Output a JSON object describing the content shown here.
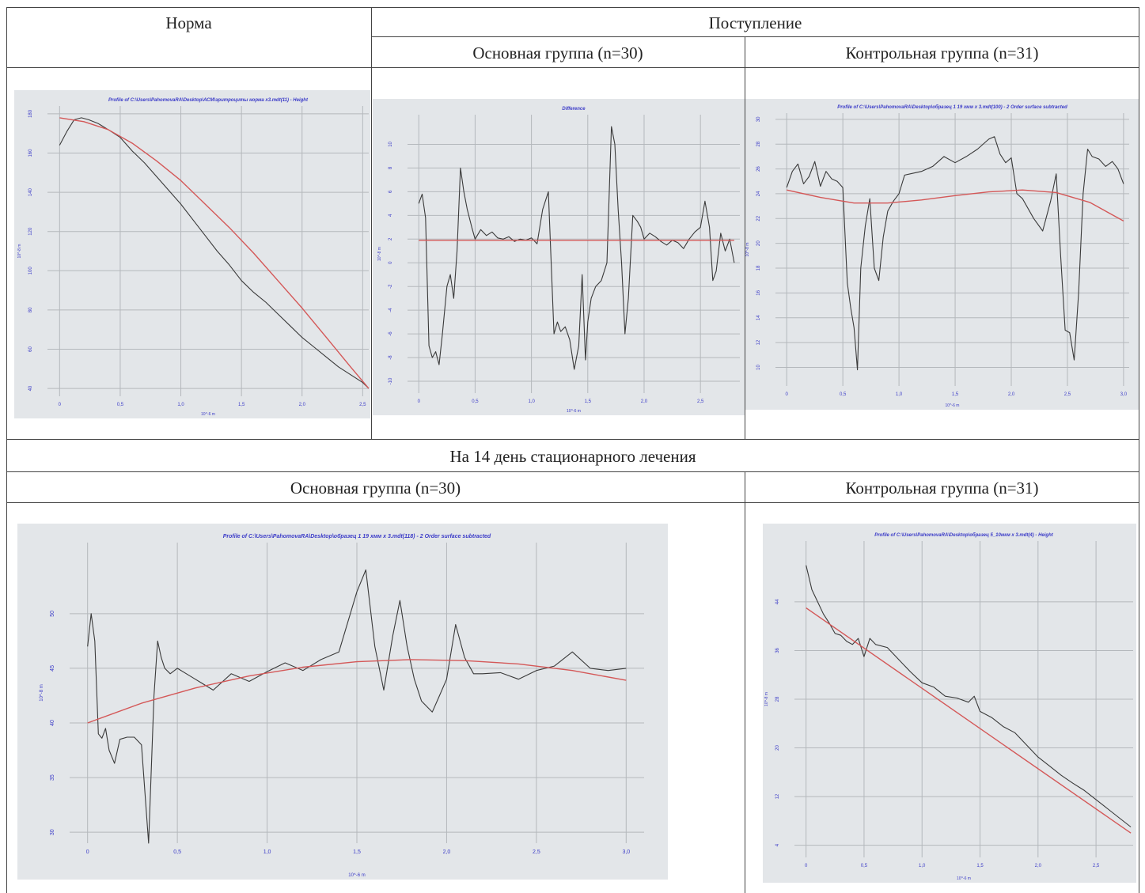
{
  "table": {
    "col_norm": "Норма",
    "col_admission": "Поступление",
    "main_group": "Основная группа (n=30)",
    "control_group": "Контрольная группа (n=31)",
    "day14": "На 14 день стационарного лечения"
  },
  "colors": {
    "profile": "#3a3a3a",
    "fit": "#d45858",
    "plot_bg": "#e3e6e9",
    "title": "#3c3cc8"
  },
  "chart_data": [
    {
      "id": "norm",
      "type": "line",
      "title": "Profile of C:\\Users\\PahomovaRA\\Desktop\\АСМ\\эритроциты норма х3.mdt(11) - Height",
      "xlabel": "10^-6 m",
      "ylabel": "10^-8 m",
      "xlim": [
        -0.1,
        2.55
      ],
      "ylim": [
        36,
        184
      ],
      "xticks": [
        0,
        0.5,
        1.0,
        1.5,
        2.0,
        2.5
      ],
      "xtick_labels": [
        "0",
        "0,5",
        "1,0",
        "1,5",
        "2,0",
        "2,5"
      ],
      "yticks": [
        40,
        60,
        80,
        100,
        120,
        140,
        160,
        180
      ],
      "ytick_labels": [
        "40",
        "60",
        "80",
        "100",
        "120",
        "140",
        "160",
        "180"
      ],
      "grid": true,
      "series": [
        {
          "role": "profile",
          "x": [
            0,
            0.06,
            0.12,
            0.18,
            0.24,
            0.32,
            0.4,
            0.5,
            0.6,
            0.7,
            0.8,
            0.9,
            1.0,
            1.1,
            1.2,
            1.3,
            1.4,
            1.5,
            1.6,
            1.7,
            1.8,
            1.9,
            2.0,
            2.1,
            2.2,
            2.3,
            2.4,
            2.5,
            2.55
          ],
          "y": [
            164,
            171,
            177,
            178,
            177,
            175,
            172,
            168,
            161,
            155,
            148,
            141,
            134,
            126,
            118,
            110,
            103,
            95,
            89,
            84,
            78,
            72,
            66,
            61,
            56,
            51,
            47,
            43,
            40
          ]
        },
        {
          "role": "fit",
          "x": [
            0,
            0.2,
            0.4,
            0.6,
            0.8,
            1.0,
            1.2,
            1.4,
            1.6,
            1.8,
            2.0,
            2.2,
            2.4,
            2.55
          ],
          "y": [
            178,
            176,
            172,
            165,
            156,
            146,
            134,
            122,
            109,
            95,
            81,
            66,
            51,
            40
          ]
        }
      ]
    },
    {
      "id": "admission-main",
      "type": "line",
      "title": "Difference",
      "xlabel": "10^-6 m",
      "ylabel": "10^-8 m",
      "xlim": [
        -0.1,
        2.85
      ],
      "ylim": [
        -11,
        12.5
      ],
      "xticks": [
        0,
        0.5,
        1.0,
        1.5,
        2.0,
        2.5
      ],
      "xtick_labels": [
        "0",
        "0,5",
        "1,0",
        "1,5",
        "2,0",
        "2,5"
      ],
      "yticks": [
        -10,
        -8,
        -6,
        -4,
        -2,
        0,
        2,
        4,
        6,
        8,
        10
      ],
      "ytick_labels": [
        "-10",
        "-8",
        "-6",
        "-4",
        "-2",
        "0",
        "2",
        "4",
        "6",
        "8",
        "10"
      ],
      "grid": true,
      "series": [
        {
          "role": "profile",
          "x": [
            0,
            0.03,
            0.06,
            0.09,
            0.12,
            0.15,
            0.18,
            0.21,
            0.25,
            0.28,
            0.31,
            0.34,
            0.37,
            0.4,
            0.43,
            0.47,
            0.5,
            0.55,
            0.6,
            0.65,
            0.7,
            0.75,
            0.8,
            0.85,
            0.9,
            0.95,
            1.0,
            1.05,
            1.1,
            1.15,
            1.2,
            1.23,
            1.26,
            1.3,
            1.34,
            1.38,
            1.42,
            1.45,
            1.48,
            1.5,
            1.53,
            1.57,
            1.62,
            1.67,
            1.71,
            1.74,
            1.77,
            1.8,
            1.83,
            1.86,
            1.9,
            1.94,
            1.97,
            2.0,
            2.05,
            2.1,
            2.15,
            2.2,
            2.25,
            2.3,
            2.35,
            2.4,
            2.45,
            2.5,
            2.54,
            2.58,
            2.61,
            2.64,
            2.68,
            2.72,
            2.76,
            2.8
          ],
          "y": [
            5,
            5.8,
            3.8,
            -7,
            -8,
            -7.5,
            -8.6,
            -6,
            -2,
            -1,
            -3,
            1,
            8,
            6,
            4.5,
            3,
            2,
            2.8,
            2.3,
            2.6,
            2.1,
            2,
            2.2,
            1.8,
            2,
            1.9,
            2.1,
            1.6,
            4.5,
            6,
            -6,
            -5,
            -5.8,
            -5.4,
            -6.5,
            -9,
            -7,
            -1,
            -8.2,
            -5,
            -3,
            -2,
            -1.5,
            0,
            11.5,
            10,
            4.5,
            0,
            -6,
            -3,
            4,
            3.5,
            3,
            2,
            2.5,
            2.2,
            1.8,
            1.5,
            1.9,
            1.7,
            1.2,
            2,
            2.6,
            3,
            5.2,
            3,
            -1.5,
            -0.7,
            2.5,
            1,
            2,
            0
          ]
        },
        {
          "role": "fit",
          "x": [
            0,
            2.8
          ],
          "y": [
            1.9,
            1.9
          ]
        }
      ]
    },
    {
      "id": "admission-control",
      "type": "line",
      "title": "Profile of C:\\Users\\PahomovaRA\\Desktop\\образец 1 19 хмм х 3.mdt(100) - 2 Order surface subtracted",
      "xlabel": "10^-6 m",
      "ylabel": "10^-8 m",
      "xlim": [
        -0.1,
        3.05
      ],
      "ylim": [
        8.5,
        30.5
      ],
      "xticks": [
        0,
        0.5,
        1.0,
        1.5,
        2.0,
        2.5,
        3.0
      ],
      "xtick_labels": [
        "0",
        "0,5",
        "1,0",
        "1,5",
        "2,0",
        "2,5",
        "3,0"
      ],
      "yticks": [
        10,
        12,
        14,
        16,
        18,
        20,
        22,
        24,
        26,
        28,
        30
      ],
      "ytick_labels": [
        "10",
        "12",
        "14",
        "16",
        "18",
        "20",
        "22",
        "24",
        "26",
        "28",
        "30"
      ],
      "grid": true,
      "series": [
        {
          "role": "profile",
          "x": [
            0,
            0.05,
            0.1,
            0.15,
            0.2,
            0.25,
            0.3,
            0.35,
            0.4,
            0.45,
            0.5,
            0.54,
            0.57,
            0.6,
            0.63,
            0.66,
            0.7,
            0.74,
            0.78,
            0.82,
            0.86,
            0.9,
            0.95,
            1.0,
            1.05,
            1.1,
            1.2,
            1.3,
            1.4,
            1.5,
            1.6,
            1.7,
            1.8,
            1.85,
            1.9,
            1.95,
            2.0,
            2.05,
            2.1,
            2.2,
            2.28,
            2.35,
            2.4,
            2.44,
            2.48,
            2.52,
            2.56,
            2.6,
            2.64,
            2.68,
            2.72,
            2.78,
            2.84,
            2.9,
            2.95,
            3.0
          ],
          "y": [
            24.5,
            25.8,
            26.4,
            24.8,
            25.4,
            26.6,
            24.6,
            25.8,
            25.2,
            25,
            24.5,
            16.8,
            14.8,
            13.2,
            9.8,
            18,
            21.4,
            23.6,
            18,
            17,
            20.5,
            22.6,
            23.4,
            24,
            25.5,
            25.6,
            25.8,
            26.2,
            27,
            26.5,
            27,
            27.6,
            28.4,
            28.6,
            27.2,
            26.5,
            26.9,
            24,
            23.6,
            22,
            21,
            23.4,
            25.6,
            19,
            13,
            12.8,
            10.6,
            16,
            24,
            27.6,
            27,
            26.8,
            26.2,
            26.6,
            26,
            24.8
          ]
        },
        {
          "role": "fit",
          "x": [
            0,
            0.3,
            0.6,
            0.9,
            1.2,
            1.5,
            1.8,
            2.1,
            2.4,
            2.7,
            3.0
          ],
          "y": [
            24.3,
            23.7,
            23.25,
            23.25,
            23.5,
            23.85,
            24.15,
            24.3,
            24.1,
            23.3,
            21.8
          ]
        }
      ]
    },
    {
      "id": "day14-main",
      "type": "line",
      "title": "Profile of C:\\Users\\PahomovaRA\\Desktop\\образец 1 19 хмм х 3.mdt(118) - 2 Order surface subtracted",
      "xlabel": "10^-6 m",
      "ylabel": "10^-8 m",
      "xlim": [
        -0.1,
        3.1
      ],
      "ylim": [
        29,
        56.5
      ],
      "xticks": [
        0,
        0.5,
        1.0,
        1.5,
        2.0,
        2.5,
        3.0
      ],
      "xtick_labels": [
        "0",
        "0,5",
        "1,0",
        "1,5",
        "2,0",
        "2,5",
        "3,0"
      ],
      "yticks": [
        30,
        35,
        40,
        45,
        50
      ],
      "ytick_labels": [
        "30",
        "35",
        "40",
        "45",
        "50"
      ],
      "grid": true,
      "series": [
        {
          "role": "profile",
          "x": [
            0,
            0.02,
            0.04,
            0.06,
            0.08,
            0.1,
            0.12,
            0.15,
            0.18,
            0.22,
            0.26,
            0.3,
            0.34,
            0.37,
            0.39,
            0.41,
            0.43,
            0.46,
            0.5,
            0.55,
            0.6,
            0.7,
            0.8,
            0.9,
            1.0,
            1.1,
            1.2,
            1.3,
            1.4,
            1.5,
            1.55,
            1.6,
            1.65,
            1.7,
            1.74,
            1.78,
            1.82,
            1.86,
            1.92,
            1.96,
            2.0,
            2.05,
            2.1,
            2.15,
            2.2,
            2.3,
            2.4,
            2.5,
            2.6,
            2.7,
            2.8,
            2.9,
            3.0
          ],
          "y": [
            47,
            50,
            47.5,
            39,
            38.6,
            39.5,
            37.5,
            36.3,
            38.5,
            38.7,
            38.7,
            38,
            29,
            42.5,
            47.5,
            46,
            45,
            44.5,
            45,
            44.5,
            44,
            43,
            44.5,
            43.8,
            44.7,
            45.5,
            44.8,
            45.8,
            46.5,
            52,
            54,
            47,
            43,
            48,
            51.2,
            47,
            44,
            42,
            41,
            42.5,
            44,
            49,
            46,
            44.5,
            44.5,
            44.6,
            44,
            44.8,
            45.2,
            46.5,
            45,
            44.8,
            45
          ]
        },
        {
          "role": "fit",
          "x": [
            0,
            0.3,
            0.6,
            0.9,
            1.2,
            1.5,
            1.8,
            2.1,
            2.4,
            2.7,
            3.0
          ],
          "y": [
            40,
            41.8,
            43.2,
            44.3,
            45.1,
            45.6,
            45.8,
            45.7,
            45.4,
            44.8,
            43.9
          ]
        }
      ]
    },
    {
      "id": "day14-control",
      "type": "line",
      "title": "Profile of C:\\Users\\PahomovaRA\\Desktop\\образец 5_10мкм х 3.mdt(4) - Height",
      "xlabel": "10^-6 m",
      "ylabel": "10^-8 m",
      "xlim": [
        -0.1,
        2.82
      ],
      "ylim": [
        2,
        54
      ],
      "xticks": [
        0,
        0.5,
        1.0,
        1.5,
        2.0,
        2.5
      ],
      "xtick_labels": [
        "0",
        "0,5",
        "1,0",
        "1,5",
        "2,0",
        "2,5"
      ],
      "yticks": [
        4,
        12,
        20,
        28,
        36,
        44
      ],
      "ytick_labels": [
        "4",
        "12",
        "20",
        "28",
        "36",
        "44"
      ],
      "grid": true,
      "series": [
        {
          "role": "profile",
          "x": [
            0,
            0.05,
            0.1,
            0.15,
            0.2,
            0.25,
            0.3,
            0.35,
            0.4,
            0.45,
            0.5,
            0.55,
            0.6,
            0.7,
            0.8,
            0.9,
            1.0,
            1.1,
            1.2,
            1.3,
            1.4,
            1.45,
            1.5,
            1.55,
            1.6,
            1.7,
            1.8,
            1.9,
            2.0,
            2.1,
            2.2,
            2.3,
            2.4,
            2.5,
            2.6,
            2.7,
            2.8
          ],
          "y": [
            50,
            46,
            44,
            42,
            40.5,
            38.8,
            38.5,
            37.5,
            37,
            38,
            35,
            38,
            37,
            36.5,
            34.5,
            32.5,
            30.7,
            30,
            28.5,
            28.2,
            27.5,
            28.5,
            26,
            25.5,
            25,
            23.5,
            22.5,
            20.5,
            18.5,
            17,
            15.5,
            14.2,
            13,
            11.5,
            10,
            8.5,
            7
          ]
        },
        {
          "role": "fit",
          "x": [
            0,
            2.8
          ],
          "y": [
            43,
            6
          ]
        }
      ]
    }
  ]
}
